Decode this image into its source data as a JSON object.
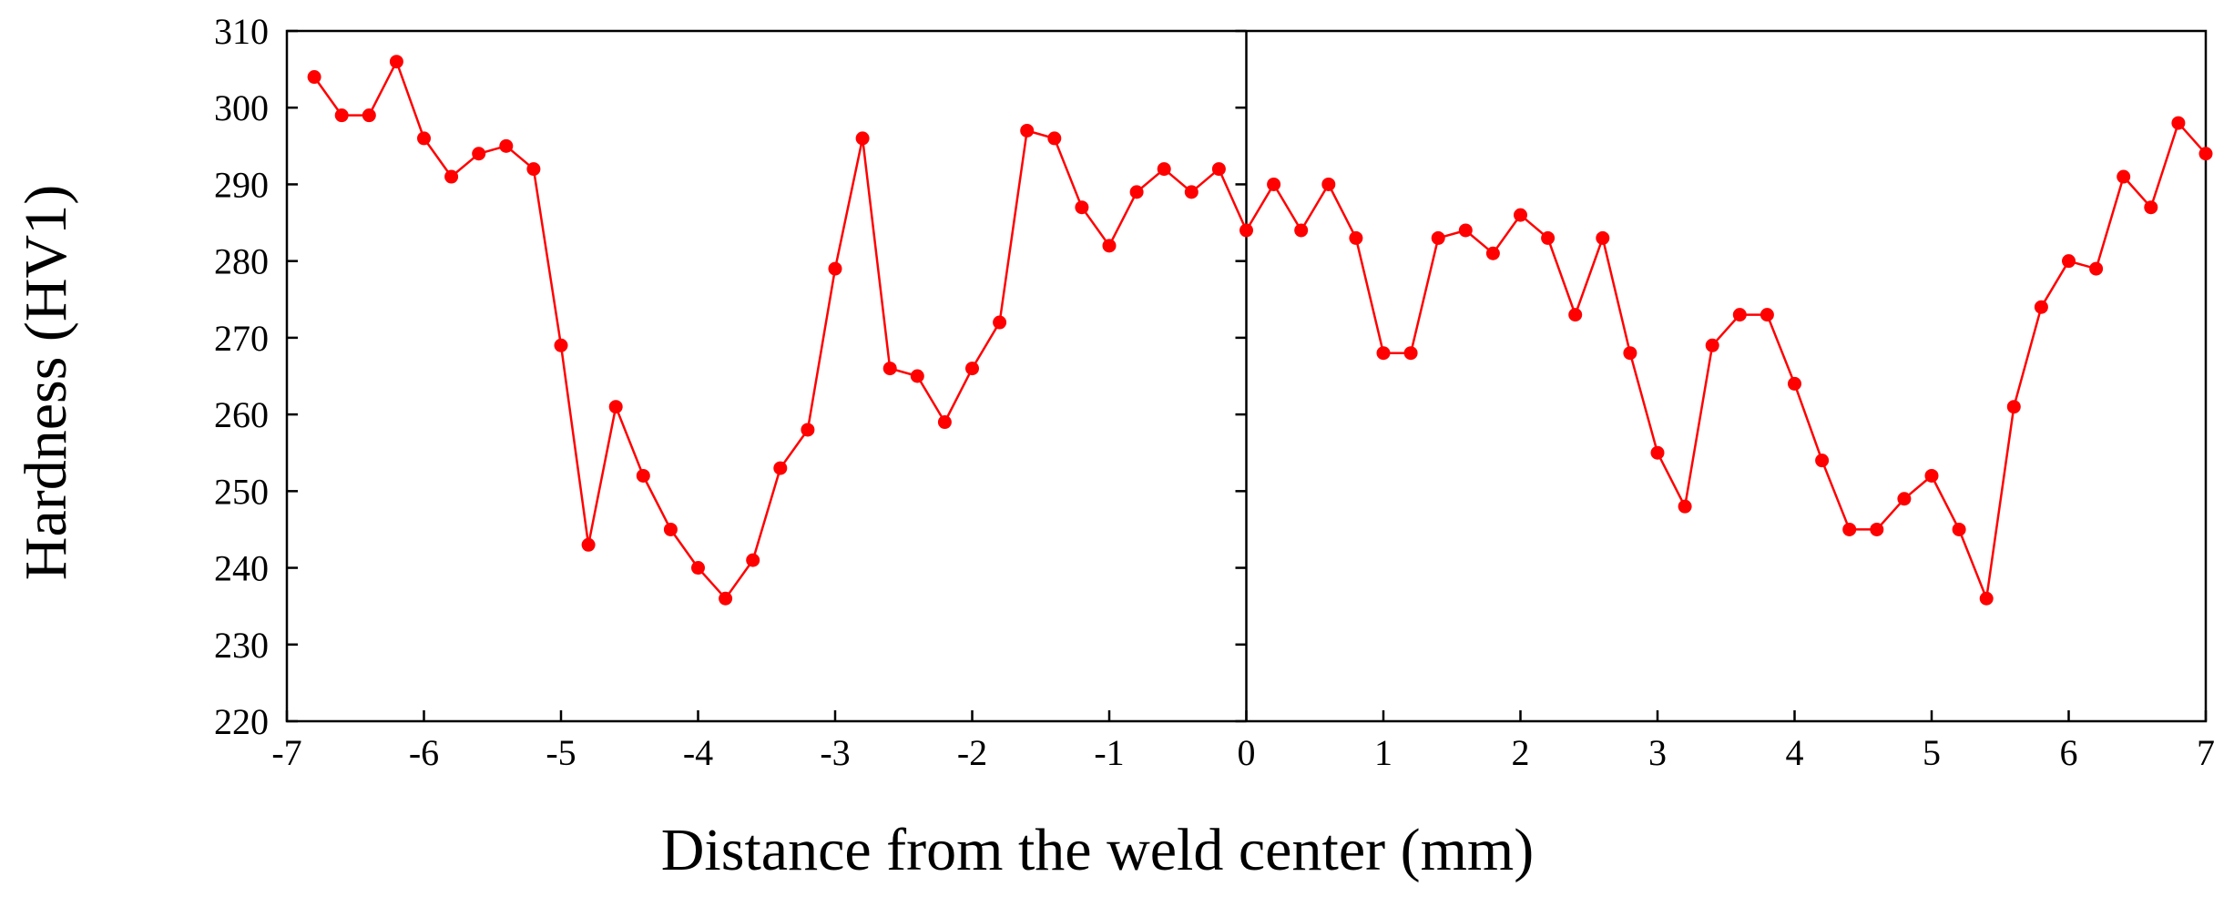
{
  "chart_data": {
    "type": "line",
    "title": "",
    "xlabel": "Distance from the weld center (mm)",
    "ylabel": "Hardness (HV1)",
    "xlim": [
      -7,
      7
    ],
    "ylim": [
      220,
      310
    ],
    "xticks": [
      -7,
      -6,
      -5,
      -4,
      -3,
      -2,
      -1,
      0,
      1,
      2,
      3,
      4,
      5,
      6,
      7
    ],
    "yticks": [
      220,
      230,
      240,
      250,
      260,
      270,
      280,
      290,
      300,
      310
    ],
    "grid": false,
    "legend": "none",
    "reference_line_x": 0,
    "series_color": "#ff0000",
    "series": [
      {
        "x": [
          -6.8,
          -6.6,
          -6.4,
          -6.2,
          -6.0,
          -5.8,
          -5.6,
          -5.4,
          -5.2,
          -5.0,
          -4.8,
          -4.6,
          -4.4,
          -4.2,
          -4.0,
          -3.8,
          -3.6,
          -3.4,
          -3.2,
          -3.0,
          -2.8,
          -2.6,
          -2.4,
          -2.2,
          -2.0,
          -1.8,
          -1.6,
          -1.4,
          -1.2,
          -1.0,
          -0.8,
          -0.6,
          -0.4,
          -0.2,
          0.0,
          0.2,
          0.4,
          0.6,
          0.8,
          1.0,
          1.2,
          1.4,
          1.6,
          1.8,
          2.0,
          2.2,
          2.4,
          2.6,
          2.8,
          3.0,
          3.2,
          3.4,
          3.6,
          3.8,
          4.0,
          4.2,
          4.4,
          4.6,
          4.8,
          5.0,
          5.2,
          5.4,
          5.6,
          5.8,
          6.0,
          6.2,
          6.4,
          6.6,
          6.8,
          7.0
        ],
        "y": [
          304,
          299,
          299,
          306,
          296,
          291,
          294,
          295,
          292,
          269,
          243,
          261,
          252,
          245,
          240,
          236,
          241,
          253,
          258,
          279,
          296,
          266,
          265,
          259,
          266,
          272,
          297,
          296,
          287,
          282,
          289,
          292,
          289,
          292,
          284,
          290,
          284,
          290,
          283,
          268,
          268,
          283,
          284,
          281,
          286,
          283,
          273,
          283,
          268,
          255,
          248,
          269,
          273,
          273,
          264,
          254,
          245,
          245,
          249,
          252,
          245,
          236,
          261,
          274,
          280,
          279,
          291,
          287,
          298,
          294
        ]
      }
    ]
  }
}
